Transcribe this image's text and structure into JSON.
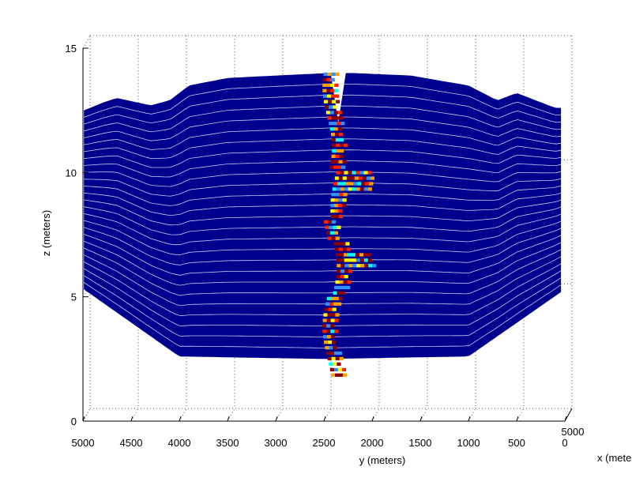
{
  "chart_data": {
    "type": "3d-surface",
    "xlabel": "y (meters)",
    "ylabel": "z (meters)",
    "depth_label": "x (meters)",
    "x_ticks": [
      5000,
      4500,
      4000,
      3500,
      3000,
      2500,
      2000,
      1500,
      1000,
      500,
      0
    ],
    "y_ticks": [
      0,
      5,
      10,
      15
    ],
    "depth_ticks": [
      5000
    ],
    "xlim": [
      0,
      5000
    ],
    "ylim": [
      0,
      15
    ],
    "x_reversed": true,
    "grid": true,
    "colors": {
      "background_block": "#00008f",
      "layer_lines": "#d8e0ff",
      "fracture_high": "#8b0000",
      "fracture_mid": "#ff2000",
      "fracture_warm": "#ffa000",
      "fracture_yellow": "#ffff00",
      "fracture_cyan": "#00ffff",
      "fracture_light": "#3090ff"
    },
    "top_surface": [
      {
        "y": 4990,
        "z": 12.5
      },
      {
        "y": 4800,
        "z": 12.8
      },
      {
        "y": 4650,
        "z": 13.0
      },
      {
        "y": 4300,
        "z": 12.7
      },
      {
        "y": 4100,
        "z": 12.9
      },
      {
        "y": 3900,
        "z": 13.5
      },
      {
        "y": 3500,
        "z": 13.8
      },
      {
        "y": 3000,
        "z": 13.9
      },
      {
        "y": 2450,
        "z": 14.0
      },
      {
        "y": 2200,
        "z": 14.0
      },
      {
        "y": 1600,
        "z": 13.9
      },
      {
        "y": 1000,
        "z": 13.5
      },
      {
        "y": 700,
        "z": 12.9
      },
      {
        "y": 500,
        "z": 13.2
      },
      {
        "y": 100,
        "z": 12.6
      }
    ],
    "bottom_surface": [
      {
        "y": 4990,
        "z": 5.3
      },
      {
        "y": 4000,
        "z": 2.6
      },
      {
        "y": 2500,
        "z": 2.5
      },
      {
        "y": 1000,
        "z": 2.6
      },
      {
        "y": 0,
        "z": 5.3
      }
    ],
    "layer_count": 26,
    "fracture_y": 2400
  }
}
